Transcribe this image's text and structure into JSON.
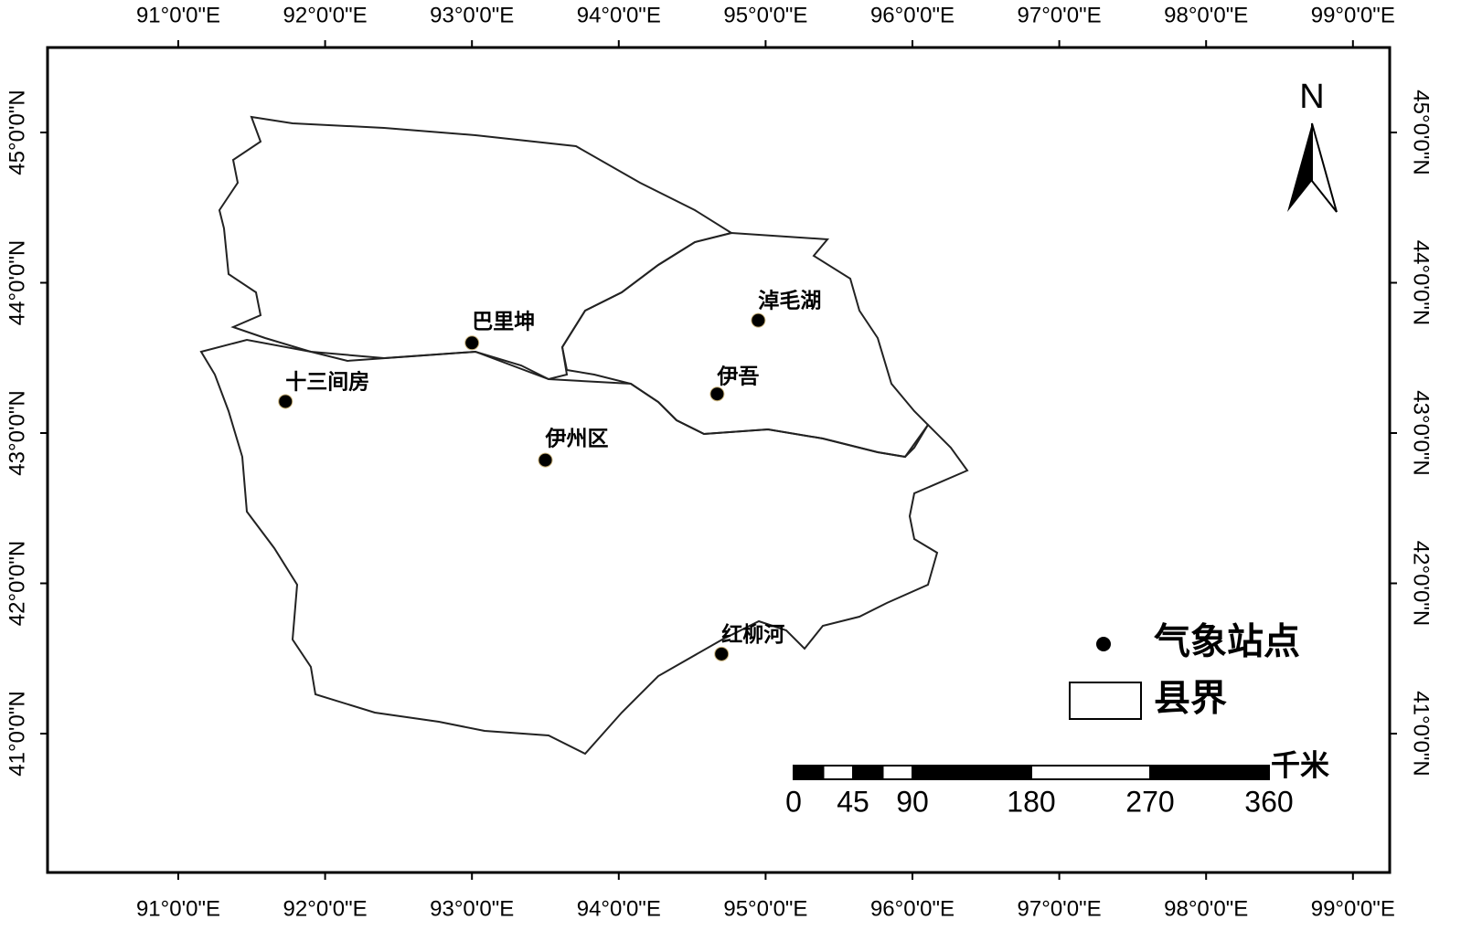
{
  "map": {
    "lon_ticks": [
      {
        "value": 91,
        "label": "91°0'0\"E"
      },
      {
        "value": 92,
        "label": "92°0'0\"E"
      },
      {
        "value": 93,
        "label": "93°0'0\"E"
      },
      {
        "value": 94,
        "label": "94°0'0\"E"
      },
      {
        "value": 95,
        "label": "95°0'0\"E"
      },
      {
        "value": 96,
        "label": "96°0'0\"E"
      },
      {
        "value": 97,
        "label": "97°0'0\"E"
      },
      {
        "value": 98,
        "label": "98°0'0\"E"
      },
      {
        "value": 99,
        "label": "99°0'0\"E"
      }
    ],
    "lat_ticks": [
      {
        "value": 41,
        "label": "41°0'0\"N"
      },
      {
        "value": 42,
        "label": "42°0'0\"N"
      },
      {
        "value": 43,
        "label": "43°0'0\"N"
      },
      {
        "value": 44,
        "label": "44°0'0\"N"
      },
      {
        "value": 45,
        "label": "45°0'0\"N"
      }
    ],
    "stations": [
      {
        "name": "巴里坤",
        "lon": 93.0,
        "lat": 43.6
      },
      {
        "name": "淖毛湖",
        "lon": 94.95,
        "lat": 43.75
      },
      {
        "name": "伊吾",
        "lon": 94.67,
        "lat": 43.26
      },
      {
        "name": "十三间房",
        "lon": 91.73,
        "lat": 43.21
      },
      {
        "name": "伊州区",
        "lon": 93.5,
        "lat": 42.82
      },
      {
        "name": "红柳河",
        "lon": 94.7,
        "lat": 41.53
      }
    ],
    "north_arrow": "N",
    "legend": {
      "station": "气象站点",
      "boundary": "县界"
    },
    "scale_bar": {
      "ticks": [
        0,
        45,
        90,
        180,
        270,
        360
      ],
      "unit": "千米"
    }
  }
}
